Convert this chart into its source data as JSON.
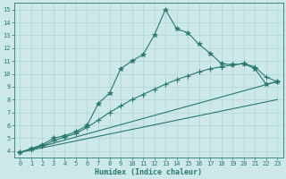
{
  "xlabel": "Humidex (Indice chaleur)",
  "bg_color": "#cce8e8",
  "grid_color": "#b0d4d4",
  "line_color": "#2a7870",
  "xlim": [
    -0.5,
    23.5
  ],
  "ylim": [
    3.5,
    15.5
  ],
  "xticks": [
    0,
    1,
    2,
    3,
    4,
    5,
    6,
    7,
    8,
    9,
    10,
    11,
    12,
    13,
    14,
    15,
    16,
    17,
    18,
    19,
    20,
    21,
    22,
    23
  ],
  "yticks": [
    4,
    5,
    6,
    7,
    8,
    9,
    10,
    11,
    12,
    13,
    14,
    15
  ],
  "line_star": {
    "x": [
      0,
      1,
      2,
      3,
      4,
      5,
      6,
      7,
      8,
      9,
      10,
      11,
      12,
      13,
      14,
      15,
      16,
      17,
      18,
      19,
      20,
      21,
      22,
      23
    ],
    "y": [
      3.9,
      4.2,
      4.5,
      5.0,
      5.2,
      5.5,
      6.0,
      7.7,
      8.5,
      10.4,
      11.0,
      11.5,
      13.0,
      15.0,
      13.5,
      13.2,
      12.3,
      11.6,
      10.8,
      10.7,
      10.8,
      10.4,
      9.2,
      9.4
    ]
  },
  "line_plus": {
    "x": [
      0,
      1,
      2,
      3,
      4,
      5,
      6,
      7,
      8,
      9,
      10,
      11,
      12,
      13,
      14,
      15,
      16,
      17,
      18,
      19,
      20,
      21,
      22,
      23
    ],
    "y": [
      3.9,
      4.15,
      4.4,
      4.8,
      5.1,
      5.35,
      5.85,
      6.4,
      7.0,
      7.5,
      8.0,
      8.4,
      8.8,
      9.2,
      9.55,
      9.85,
      10.15,
      10.4,
      10.55,
      10.7,
      10.8,
      10.55,
      9.75,
      9.4
    ]
  },
  "line_straight1": {
    "x": [
      0,
      23
    ],
    "y": [
      3.9,
      9.4
    ]
  },
  "line_straight2": {
    "x": [
      0,
      23
    ],
    "y": [
      3.9,
      8.0
    ]
  }
}
